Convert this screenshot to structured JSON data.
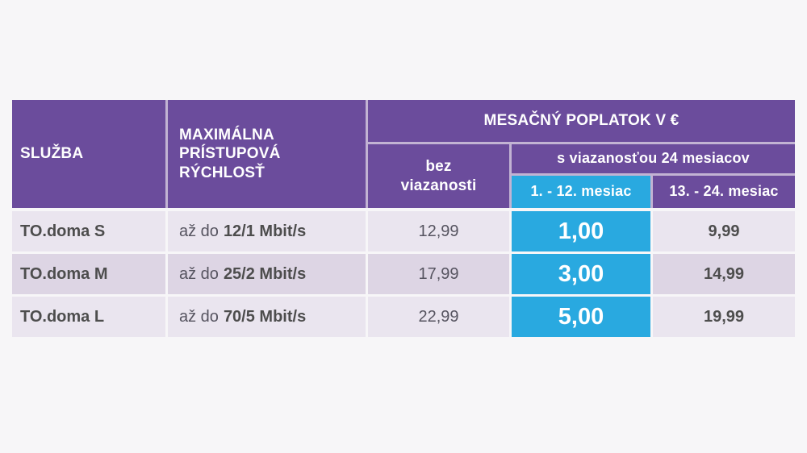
{
  "colors": {
    "purple": "#6b4c9c",
    "cyan": "#29a9e0",
    "row_light": "#eae5ef",
    "row_dark": "#ddd5e4",
    "page_background": "#f7f6f8",
    "header_text": "#ffffff",
    "body_text": "#4d4d4d"
  },
  "table": {
    "headers": {
      "service": "SLUŽBA",
      "max_speed": "MAXIMÁLNA PRÍSTUPOVÁ RÝCHLOSŤ",
      "monthly_fee": "MESAČNÝ POPLATOK V €",
      "no_commitment": "bez viazanosti",
      "with_commitment": "s viazanosťou 24 mesiacov",
      "months_1_12": "1. - 12. mesiac",
      "months_13_24": "13. - 24. mesiac"
    },
    "rows": [
      {
        "service": "TO.doma S",
        "speed_prefix": "až do",
        "speed": "12/1 Mbit/s",
        "no_commitment": "12,99",
        "months_1_12": "1,00",
        "months_13_24": "9,99"
      },
      {
        "service": "TO.doma M",
        "speed_prefix": "až do",
        "speed": "25/2 Mbit/s",
        "no_commitment": "17,99",
        "months_1_12": "3,00",
        "months_13_24": "14,99"
      },
      {
        "service": "TO.doma L",
        "speed_prefix": "až do",
        "speed": "70/5 Mbit/s",
        "no_commitment": "22,99",
        "months_1_12": "5,00",
        "months_13_24": "19,99"
      }
    ]
  }
}
